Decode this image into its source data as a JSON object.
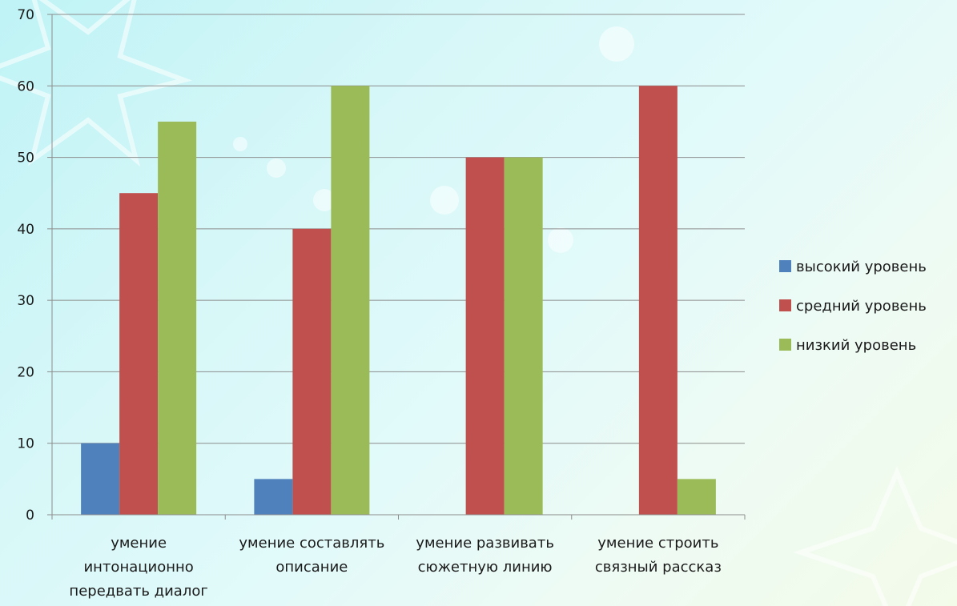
{
  "chart_data": {
    "type": "bar",
    "categories": [
      [
        "умение",
        "интонационно",
        "передвать диалог"
      ],
      [
        "умение составлять",
        "описание"
      ],
      [
        "умение развивать",
        "сюжетную линию"
      ],
      [
        "умение строить",
        "связный рассказ"
      ]
    ],
    "series": [
      {
        "name": "высокий уровень",
        "color": "#4f81bd",
        "values": [
          10,
          5,
          0,
          0
        ]
      },
      {
        "name": "средний уровень",
        "color": "#c0504d",
        "values": [
          45,
          40,
          50,
          60
        ]
      },
      {
        "name": "низкий уровень",
        "color": "#9bbb59",
        "values": [
          55,
          60,
          50,
          5
        ]
      }
    ],
    "yticks": [
      0,
      10,
      20,
      30,
      40,
      50,
      60,
      70
    ],
    "ylim": [
      0,
      70
    ],
    "grid": true,
    "legend_position": "right"
  }
}
